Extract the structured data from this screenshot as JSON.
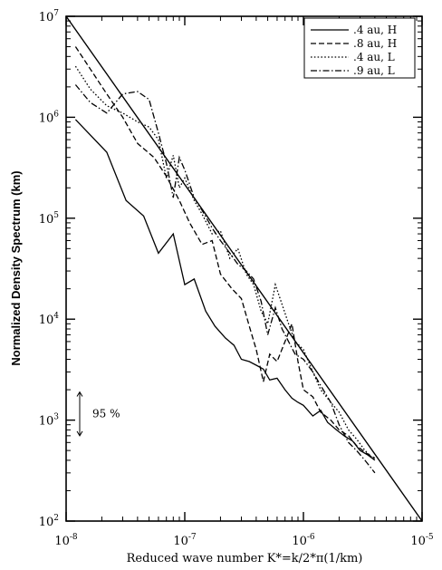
{
  "chart_data": {
    "type": "line",
    "title": "",
    "xlabel": "Reduced wave number K*=k/2*π(1/km)",
    "ylabel": "Normalized Density Spectrum (km)",
    "xscale": "log",
    "yscale": "log",
    "xlim": [
      1e-08,
      1e-05
    ],
    "ylim": [
      100,
      10000000
    ],
    "x_ticks": [
      {
        "value": 1e-08,
        "base": "10",
        "exp": "-8"
      },
      {
        "value": 1e-07,
        "base": "10",
        "exp": "-7"
      },
      {
        "value": 1e-06,
        "base": "10",
        "exp": "-6"
      },
      {
        "value": 1e-05,
        "base": "10",
        "exp": "-5"
      }
    ],
    "y_ticks": [
      {
        "value": 100,
        "base": "10",
        "exp": "2"
      },
      {
        "value": 1000,
        "base": "10",
        "exp": "3"
      },
      {
        "value": 10000,
        "base": "10",
        "exp": "4"
      },
      {
        "value": 100000,
        "base": "10",
        "exp": "5"
      },
      {
        "value": 1000000,
        "base": "10",
        "exp": "6"
      },
      {
        "value": 10000000,
        "base": "10",
        "exp": "7"
      }
    ],
    "grid": false,
    "legend_position": "top-right",
    "reference_line": {
      "x": [
        1e-08,
        1e-05
      ],
      "y": [
        10000000,
        100
      ],
      "style": "solid"
    },
    "annotation": {
      "text": "95 %",
      "x": 1.2e-08,
      "y_range": [
        700,
        1900
      ]
    },
    "series": [
      {
        "name": ".4 au, H",
        "style": "solid",
        "x": [
          1.2e-08,
          2.2e-08,
          3.2e-08,
          4.5e-08,
          6e-08,
          8e-08,
          1e-07,
          1.2e-07,
          1.5e-07,
          1.8e-07,
          2.2e-07,
          2.6e-07,
          3e-07,
          3.5e-07,
          4e-07,
          4.6e-07,
          5.2e-07,
          6e-07,
          7e-07,
          8e-07,
          9e-07,
          1e-06,
          1.2e-06,
          1.4e-06,
          1.6e-06,
          1.9e-06,
          2.2e-06,
          2.6e-06,
          3e-06,
          3.5e-06,
          4e-06
        ],
        "y": [
          950000,
          450000,
          150000,
          105000,
          45000,
          70000,
          22000,
          25000,
          12000,
          8500,
          6500,
          5500,
          4000,
          3800,
          3500,
          3200,
          2500,
          2600,
          2000,
          1650,
          1500,
          1400,
          1100,
          1250,
          950,
          800,
          700,
          620,
          500,
          450,
          400
        ]
      },
      {
        "name": ".8 au, H",
        "style": "dashed",
        "x": [
          1.2e-08,
          1.6e-08,
          2.2e-08,
          3e-08,
          4e-08,
          5.5e-08,
          7e-08,
          9e-08,
          1.1e-07,
          1.4e-07,
          1.7e-07,
          2e-07,
          2.5e-07,
          3e-07,
          3.5e-07,
          4e-07,
          4.6e-07,
          5.2e-07,
          6e-07,
          7e-07,
          8e-07,
          9e-07,
          1e-06,
          1.2e-06,
          1.4e-06,
          1.7e-06,
          2e-06,
          2.4e-06,
          2.8e-06,
          3.3e-06,
          4e-06
        ],
        "y": [
          5000000,
          3000000,
          1700000,
          1000000,
          550000,
          400000,
          260000,
          150000,
          90000,
          55000,
          60000,
          28000,
          20000,
          16000,
          8500,
          5000,
          2400,
          4500,
          3800,
          6000,
          9000,
          3800,
          2000,
          1700,
          1200,
          1000,
          800,
          700,
          560,
          480,
          420
        ]
      },
      {
        "name": ".4 au, L",
        "style": "dotted",
        "x": [
          1.2e-08,
          1.6e-08,
          2.2e-08,
          3e-08,
          4e-08,
          5e-08,
          6e-08,
          7e-08,
          8e-08,
          9e-08,
          1e-07,
          1.2e-07,
          1.4e-07,
          1.7e-07,
          2e-07,
          2.4e-07,
          2.8e-07,
          3.3e-07,
          3.8e-07,
          4.4e-07,
          5e-07,
          5.8e-07,
          6.6e-07,
          7.5e-07,
          8.5e-07,
          1e-06,
          1.2e-06,
          1.4e-06,
          1.7e-06,
          2e-06,
          2.4e-06,
          2.8e-06,
          3.3e-06,
          4e-06
        ],
        "y": [
          3200000,
          1900000,
          1300000,
          1100000,
          900000,
          800000,
          600000,
          250000,
          420000,
          200000,
          250000,
          150000,
          110000,
          70000,
          75000,
          40000,
          50000,
          28000,
          22000,
          12000,
          9000,
          22000,
          14000,
          9000,
          6000,
          5000,
          3000,
          2000,
          1500,
          1200,
          800,
          650,
          500,
          400
        ]
      },
      {
        "name": ".9 au, L",
        "style": "dashdot",
        "x": [
          1.2e-08,
          1.6e-08,
          2.2e-08,
          3e-08,
          4e-08,
          5e-08,
          6e-08,
          7e-08,
          8e-08,
          9e-08,
          1e-07,
          1.2e-07,
          1.4e-07,
          1.7e-07,
          2e-07,
          2.4e-07,
          2.8e-07,
          3.3e-07,
          3.8e-07,
          4.4e-07,
          5e-07,
          5.8e-07,
          6.6e-07,
          7.5e-07,
          8.5e-07,
          1e-06,
          1.2e-06,
          1.4e-06,
          1.7e-06,
          2e-06,
          2.4e-06,
          2.8e-06,
          3.3e-06,
          4e-06
        ],
        "y": [
          2100000,
          1400000,
          1100000,
          1700000,
          1800000,
          1500000,
          700000,
          350000,
          160000,
          400000,
          300000,
          160000,
          120000,
          80000,
          60000,
          45000,
          35000,
          30000,
          25000,
          15000,
          7000,
          13000,
          8000,
          6000,
          4500,
          4000,
          3000,
          2200,
          1500,
          900,
          600,
          500,
          400,
          300
        ]
      }
    ]
  }
}
